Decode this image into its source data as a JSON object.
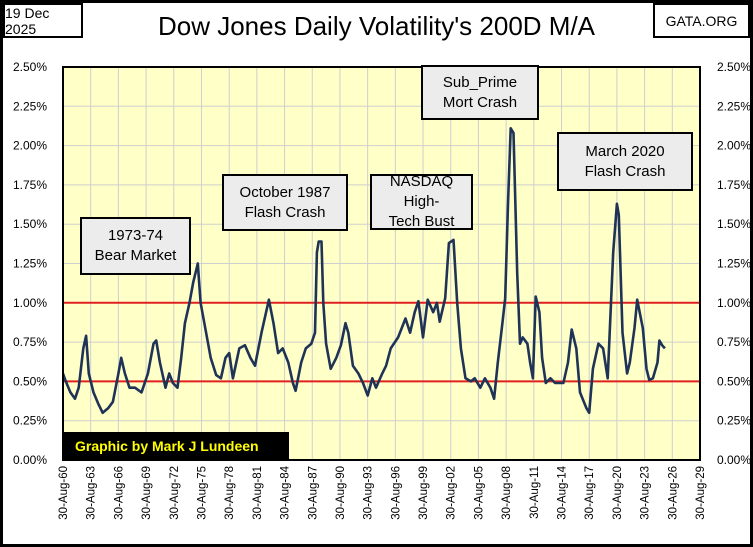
{
  "header": {
    "date": "19 Dec 2025",
    "source": "GATA.ORG"
  },
  "credit": "Graphic by Mark J Lundeen",
  "colors": {
    "plot_bg": "#ffffc8",
    "line": "#1f3357",
    "ref": "#e02020",
    "grid": "#cfcfcf"
  },
  "chart_data": {
    "type": "line",
    "title": "Dow Jones Daily Volatility's 200D M/A",
    "xlabel": "",
    "ylabel": "",
    "xlim": [
      1960,
      2029
    ],
    "ylim": [
      0,
      2.5
    ],
    "grid": true,
    "y_ticks": [
      "0.00%",
      "0.25%",
      "0.50%",
      "0.75%",
      "1.00%",
      "1.25%",
      "1.50%",
      "1.75%",
      "2.00%",
      "2.25%",
      "2.50%"
    ],
    "x_ticks": [
      "30-Aug-60",
      "30-Aug-63",
      "30-Aug-66",
      "30-Aug-69",
      "30-Aug-72",
      "30-Aug-75",
      "30-Aug-78",
      "30-Aug-81",
      "30-Aug-84",
      "30-Aug-87",
      "30-Aug-90",
      "30-Aug-93",
      "30-Aug-96",
      "30-Aug-99",
      "30-Aug-02",
      "30-Aug-05",
      "30-Aug-08",
      "30-Aug-11",
      "30-Aug-14",
      "30-Aug-17",
      "30-Aug-20",
      "30-Aug-23",
      "30-Aug-26",
      "30-Aug-29"
    ],
    "reference_lines": [
      1.0,
      0.5
    ],
    "annotations": [
      {
        "lines": [
          "1973-74",
          "Bear Market"
        ]
      },
      {
        "lines": [
          "October 1987",
          "Flash Crash"
        ]
      },
      {
        "lines": [
          "NASDAQ High-",
          "Tech Bust"
        ]
      },
      {
        "lines": [
          "Sub_Prime",
          "Mort Crash"
        ]
      },
      {
        "lines": [
          "March 2020",
          "Flash Crash"
        ]
      }
    ],
    "series": [
      {
        "name": "Daily Volatility 200D M/A (%)",
        "x": [
          1960.0,
          1960.3,
          1960.8,
          1961.3,
          1961.7,
          1962.2,
          1962.5,
          1962.8,
          1963.3,
          1963.8,
          1964.3,
          1964.9,
          1965.4,
          1966.0,
          1966.3,
          1966.7,
          1967.2,
          1967.8,
          1968.5,
          1969.2,
          1969.8,
          1970.1,
          1970.5,
          1971.1,
          1971.5,
          1971.9,
          1972.4,
          1972.8,
          1973.2,
          1973.7,
          1974.1,
          1974.6,
          1974.9,
          1975.5,
          1976.0,
          1976.6,
          1977.1,
          1977.6,
          1978.0,
          1978.4,
          1979.1,
          1979.7,
          1980.3,
          1980.8,
          1981.5,
          1982.3,
          1982.8,
          1983.3,
          1983.8,
          1984.4,
          1984.9,
          1985.2,
          1985.8,
          1986.3,
          1986.9,
          1987.3,
          1987.5,
          1987.7,
          1988.0,
          1988.2,
          1988.5,
          1989.0,
          1989.6,
          1990.1,
          1990.6,
          1990.9,
          1991.4,
          1992.0,
          1992.5,
          1993.0,
          1993.5,
          1993.9,
          1994.5,
          1995.0,
          1995.5,
          1996.3,
          1997.1,
          1997.6,
          1998.1,
          1998.5,
          1999.0,
          1999.5,
          2000.1,
          2000.5,
          2000.8,
          2001.4,
          2001.8,
          2002.3,
          2002.7,
          2003.1,
          2003.6,
          2004.2,
          2004.6,
          2005.2,
          2005.7,
          2006.3,
          2006.7,
          2007.1,
          2007.6,
          2007.9,
          2008.2,
          2008.5,
          2008.8,
          2009.2,
          2009.5,
          2009.8,
          2010.3,
          2010.6,
          2010.9,
          2011.2,
          2011.6,
          2011.9,
          2012.3,
          2012.8,
          2013.3,
          2013.7,
          2014.2,
          2014.7,
          2015.1,
          2015.6,
          2016.0,
          2016.7,
          2017.0,
          2017.4,
          2018.0,
          2018.5,
          2019.0,
          2019.6,
          2020.0,
          2020.2,
          2020.6,
          2021.1,
          2021.4,
          2021.9,
          2022.2,
          2022.8,
          2023.2,
          2023.5,
          2023.9,
          2024.4,
          2024.6,
          2024.9,
          2025.2
        ],
        "y": [
          0.55,
          0.5,
          0.43,
          0.39,
          0.46,
          0.71,
          0.79,
          0.55,
          0.43,
          0.36,
          0.3,
          0.33,
          0.37,
          0.55,
          0.65,
          0.55,
          0.46,
          0.46,
          0.43,
          0.55,
          0.74,
          0.76,
          0.62,
          0.46,
          0.55,
          0.49,
          0.46,
          0.65,
          0.87,
          1.0,
          1.13,
          1.25,
          1.0,
          0.81,
          0.65,
          0.54,
          0.52,
          0.65,
          0.68,
          0.52,
          0.71,
          0.73,
          0.65,
          0.6,
          0.81,
          1.02,
          0.87,
          0.68,
          0.71,
          0.62,
          0.49,
          0.44,
          0.62,
          0.71,
          0.74,
          0.81,
          1.32,
          1.39,
          1.39,
          1.0,
          0.74,
          0.58,
          0.65,
          0.73,
          0.87,
          0.81,
          0.6,
          0.55,
          0.49,
          0.41,
          0.52,
          0.46,
          0.54,
          0.6,
          0.71,
          0.78,
          0.9,
          0.81,
          0.94,
          1.01,
          0.78,
          1.02,
          0.94,
          1.0,
          0.88,
          1.03,
          1.38,
          1.4,
          1.0,
          0.71,
          0.52,
          0.5,
          0.52,
          0.46,
          0.52,
          0.46,
          0.39,
          0.62,
          0.87,
          1.03,
          1.63,
          2.11,
          2.08,
          1.19,
          0.74,
          0.78,
          0.74,
          0.62,
          0.52,
          1.04,
          0.94,
          0.65,
          0.49,
          0.52,
          0.49,
          0.49,
          0.49,
          0.62,
          0.83,
          0.71,
          0.43,
          0.33,
          0.3,
          0.58,
          0.74,
          0.71,
          0.52,
          1.32,
          1.63,
          1.56,
          0.81,
          0.55,
          0.62,
          0.84,
          1.02,
          0.84,
          0.58,
          0.51,
          0.52,
          0.62,
          0.76,
          0.73,
          0.71
        ]
      }
    ]
  }
}
